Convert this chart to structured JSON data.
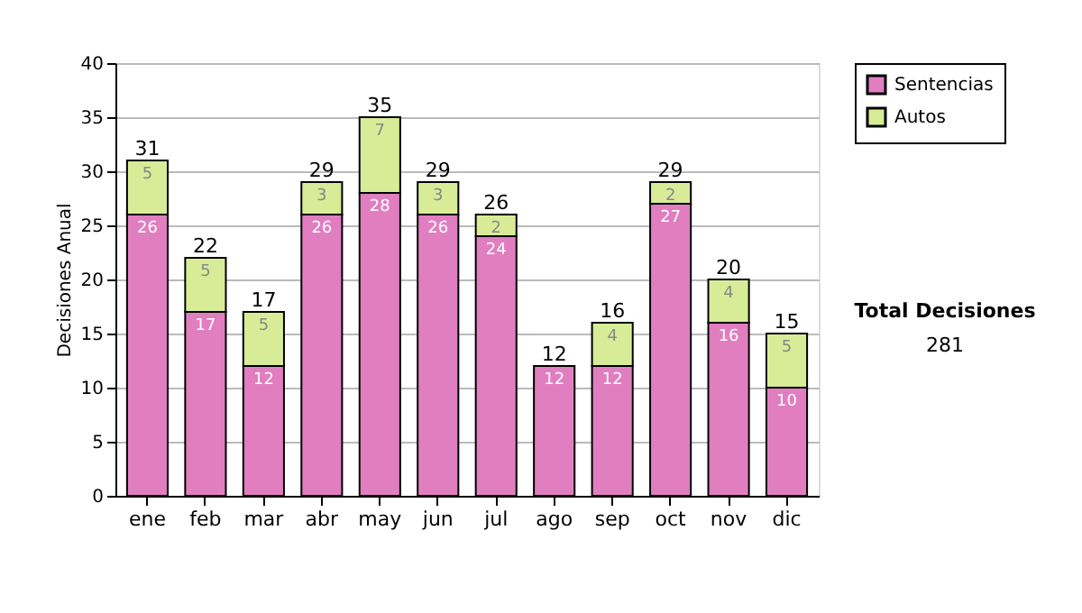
{
  "chart_data": {
    "type": "bar",
    "stacked": true,
    "ylabel": "Decisiones Anual",
    "categories": [
      "ene",
      "feb",
      "mar",
      "abr",
      "may",
      "jun",
      "jul",
      "ago",
      "sep",
      "oct",
      "nov",
      "dic"
    ],
    "series": [
      {
        "name": "Sentencias",
        "color": "#e07ec0",
        "values": [
          26,
          17,
          12,
          26,
          28,
          26,
          24,
          12,
          12,
          27,
          16,
          10
        ],
        "value_labels": [
          "26",
          "17",
          "12",
          "26",
          "28",
          "26",
          "24",
          "12",
          "12",
          "27",
          "16",
          "10"
        ]
      },
      {
        "name": "Autos",
        "color": "#d8ec98",
        "values": [
          5,
          5,
          5,
          3,
          7,
          3,
          2,
          0,
          4,
          2,
          4,
          5
        ],
        "value_labels": [
          "5",
          "5",
          "5",
          "3",
          "7",
          "3",
          "2",
          null,
          "4",
          "2",
          "4",
          "5"
        ]
      }
    ],
    "totals": [
      "31",
      "22",
      "17",
      "29",
      "35",
      "29",
      "26",
      "12",
      "16",
      "29",
      "20",
      "15"
    ],
    "ylim": [
      0,
      40
    ],
    "yticks": [
      0,
      5,
      10,
      15,
      20,
      25,
      30,
      35,
      40
    ],
    "grid": "y",
    "legend": "right",
    "annotations": [
      "Total Decisiones",
      "281"
    ]
  }
}
